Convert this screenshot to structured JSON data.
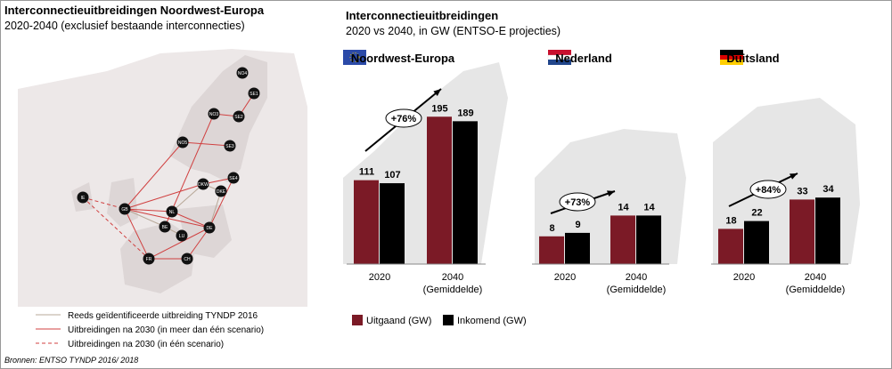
{
  "left": {
    "title": "Interconnectieuitbreidingen Noordwest-Europa",
    "subtitle": "2020-2040 (exclusief bestaande interconnecties)",
    "legend": [
      "Reeds geïdentificeerde uitbreiding TYNDP 2016",
      "Uitbreidingen  na 2030 (in meer dan één scenario)",
      "Uitbreidingen  na 2030 (in één scenario)"
    ],
    "source": "Bronnen: ENTSO TYNDP 2016/ 2018"
  },
  "map": {
    "nodes": [
      "NO4",
      "SE1",
      "NO3",
      "SE2",
      "NO5",
      "SE3",
      "SE4",
      "DKW",
      "DKE",
      "IE",
      "GB",
      "NL",
      "BE",
      "DE",
      "LU",
      "FR",
      "CH"
    ]
  },
  "header": {
    "title": "Interconnectieuitbreidingen",
    "subtitle": "2020 vs 2040, in GW (ENTSO-E projecties)"
  },
  "chart_data": [
    {
      "type": "bar",
      "title": "Noordwest-Europa",
      "categories": [
        "2020",
        "2040"
      ],
      "category_notes": [
        null,
        "(Gemiddelde)"
      ],
      "series": [
        {
          "name": "Uitgaand (GW)",
          "color": "#7b1a26",
          "values": [
            111,
            195
          ]
        },
        {
          "name": "Inkomend (GW)",
          "color": "#000000",
          "values": [
            107,
            189
          ]
        }
      ],
      "annotation": "+76%"
    },
    {
      "type": "bar",
      "title": "Nederland",
      "categories": [
        "2020",
        "2040"
      ],
      "category_notes": [
        null,
        "(Gemiddelde)"
      ],
      "series": [
        {
          "name": "Uitgaand (GW)",
          "color": "#7b1a26",
          "values": [
            8,
            14
          ]
        },
        {
          "name": "Inkomend (GW)",
          "color": "#000000",
          "values": [
            9,
            14
          ]
        }
      ],
      "annotation": "+73%"
    },
    {
      "type": "bar",
      "title": "Duitsland",
      "categories": [
        "2020",
        "2040"
      ],
      "category_notes": [
        null,
        "(Gemiddelde)"
      ],
      "series": [
        {
          "name": "Uitgaand (GW)",
          "color": "#7b1a26",
          "values": [
            18,
            33
          ]
        },
        {
          "name": "Inkomend (GW)",
          "color": "#000000",
          "values": [
            22,
            34
          ]
        }
      ],
      "annotation": "+84%"
    }
  ]
}
